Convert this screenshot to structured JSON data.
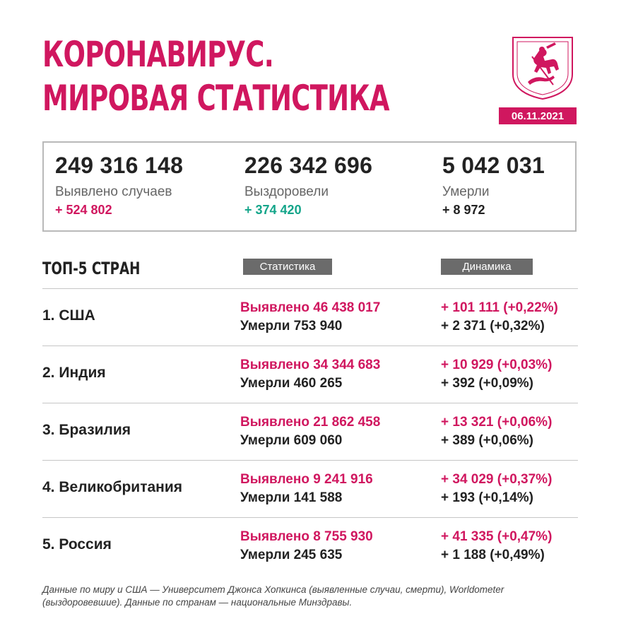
{
  "title": {
    "line1": "КОРОНАВИРУС.",
    "line2": "МИРОВАЯ СТАТИСТИКА"
  },
  "date": "06.11.2021",
  "colors": {
    "accent": "#d0175f",
    "recovered": "#14a58a",
    "pill_bg": "#6b6b6b",
    "box_border": "#b9b9b9"
  },
  "icons": {
    "emblem": "moscow-coat-of-arms-icon"
  },
  "summary": [
    {
      "number": "249 316 148",
      "label": "Выявлено случаев",
      "delta": "+ 524 802"
    },
    {
      "number": "226 342 696",
      "label": "Выздоровели",
      "delta": "+ 374 420"
    },
    {
      "number": "5 042 031",
      "label": "Умерли",
      "delta": "+ 8 972"
    }
  ],
  "top": {
    "header": "ТОП-5 СТРАН",
    "col_stats": "Статистика",
    "col_dynamics": "Динамика",
    "rows": [
      {
        "country": "1. США",
        "found": "Выявлено 46 438 017",
        "died": "Умерли 753 940",
        "found_delta": "+ 101 111 (+0,22%)",
        "died_delta": "+ 2 371 (+0,32%)"
      },
      {
        "country": "2. Индия",
        "found": "Выявлено 34 344 683",
        "died": "Умерли 460 265",
        "found_delta": "+ 10 929 (+0,03%)",
        "died_delta": "+ 392 (+0,09%)"
      },
      {
        "country": "3. Бразилия",
        "found": "Выявлено 21 862 458",
        "died": "Умерли 609 060",
        "found_delta": "+ 13 321 (+0,06%)",
        "died_delta": "+ 389 (+0,06%)"
      },
      {
        "country": "4. Великобритания",
        "found": "Выявлено 9 241 916",
        "died": "Умерли 141 588",
        "found_delta": "+ 34 029 (+0,37%)",
        "died_delta": "+ 193 (+0,14%)"
      },
      {
        "country": "5. Россия",
        "found": "Выявлено 8 755 930",
        "died": "Умерли 245 635",
        "found_delta": "+ 41 335 (+0,47%)",
        "died_delta": "+ 1 188 (+0,49%)"
      }
    ]
  },
  "footnote": "Данные по миру и США — Университет Джонса Хопкинса (выявленные случаи, смерти), Worldometer (выздоровевшие). Данные по странам — национальные Минздравы."
}
